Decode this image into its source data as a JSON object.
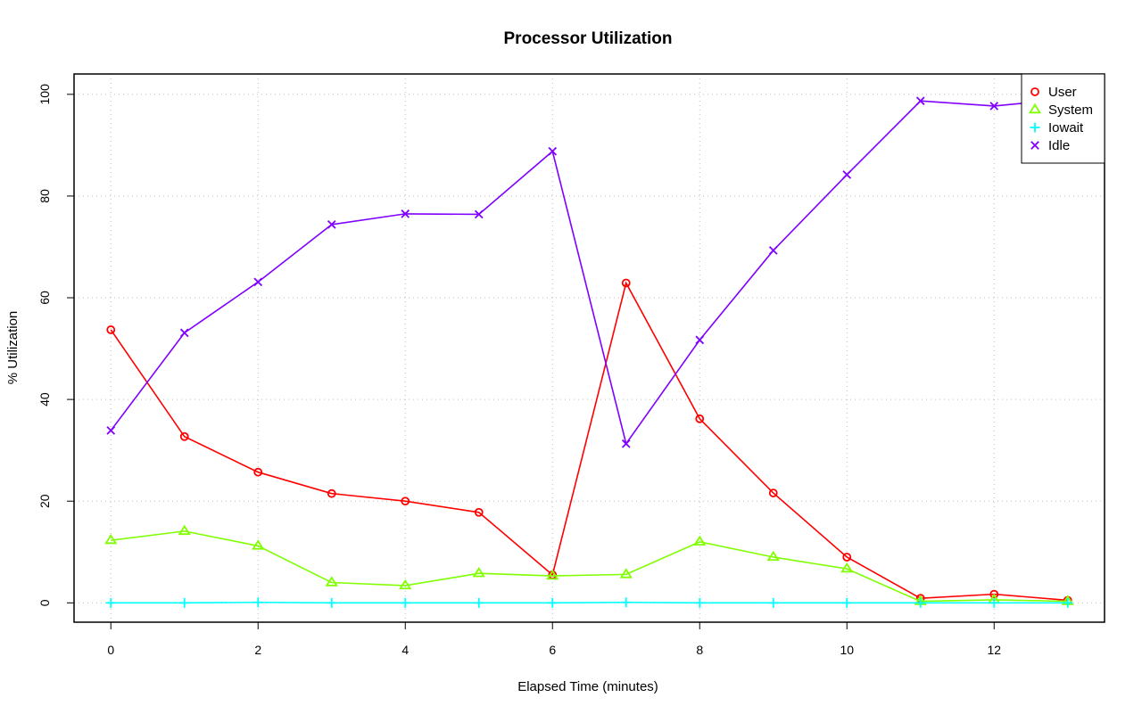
{
  "chart_data": {
    "type": "line",
    "title": "Processor Utilization",
    "xlabel": "Elapsed Time (minutes)",
    "ylabel": "% Utilization",
    "x": [
      0,
      1,
      2,
      3,
      4,
      5,
      6,
      7,
      8,
      9,
      10,
      11,
      12,
      13
    ],
    "xlim": [
      -0.5,
      13.5
    ],
    "ylim": [
      -3.8,
      104
    ],
    "xticks": [
      0,
      2,
      4,
      6,
      8,
      10,
      12
    ],
    "yticks": [
      0,
      20,
      40,
      60,
      80,
      100
    ],
    "grid": true,
    "legend_position": "top-right",
    "series": [
      {
        "name": "User",
        "color": "#ff0000",
        "marker": "circle",
        "values": [
          53.7,
          32.7,
          25.7,
          21.5,
          20.0,
          17.8,
          5.5,
          62.9,
          36.2,
          21.6,
          9.0,
          0.9,
          1.7,
          0.5
        ]
      },
      {
        "name": "System",
        "color": "#80ff00",
        "marker": "triangle",
        "values": [
          12.3,
          14.1,
          11.2,
          4.0,
          3.4,
          5.8,
          5.3,
          5.6,
          12.0,
          9.0,
          6.7,
          0.3,
          0.6,
          0.3
        ]
      },
      {
        "name": "Iowait",
        "color": "#00ffff",
        "marker": "plus",
        "values": [
          0.0,
          0.0,
          0.1,
          0.0,
          0.0,
          0.0,
          0.0,
          0.1,
          0.0,
          0.0,
          0.0,
          0.0,
          0.0,
          0.0
        ]
      },
      {
        "name": "Idle",
        "color": "#8000ff",
        "marker": "cross",
        "values": [
          33.9,
          53.1,
          63.1,
          74.4,
          76.5,
          76.4,
          88.8,
          31.3,
          51.7,
          69.3,
          84.2,
          98.7,
          97.7,
          99.1
        ]
      }
    ]
  }
}
